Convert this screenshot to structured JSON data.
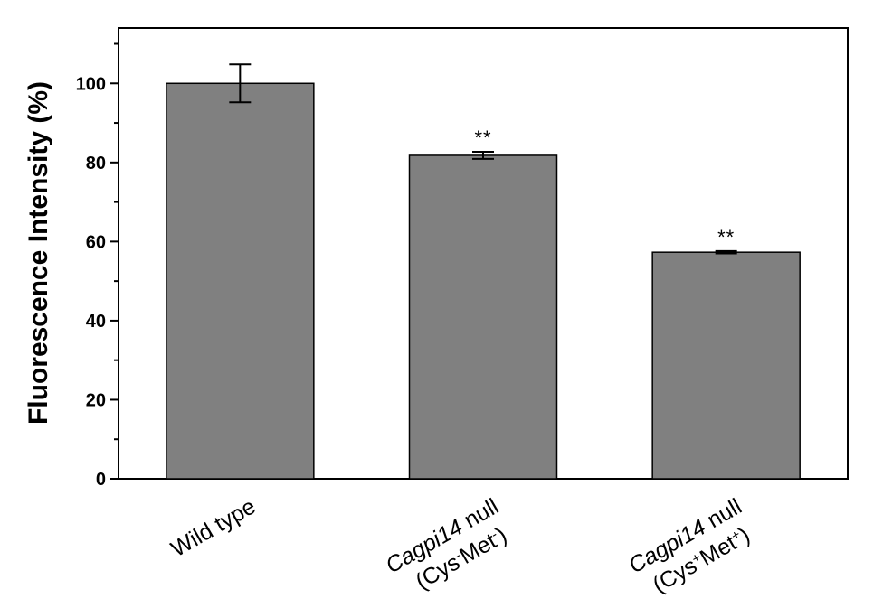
{
  "chart_data": {
    "type": "bar",
    "ylabel": "Fluorescence Intensity (%)",
    "ylim": [
      0,
      114
    ],
    "yticks": [
      0,
      20,
      40,
      60,
      80,
      100
    ],
    "minor_tick_step": 10,
    "grid": false,
    "legend": "none",
    "bar_color": "#808080",
    "categories": [
      {
        "main": "Wild type",
        "italic": "",
        "rest": "",
        "genotype": "",
        "cys_sign": "",
        "met_sign": ""
      },
      {
        "main": "",
        "italic": "Cagpi14",
        "rest": " null",
        "genotype": "(Cys",
        "cys_sign": "-",
        "met_text": "Met",
        "met_sign": "-",
        "close": ")"
      },
      {
        "main": "",
        "italic": "Cagpi14",
        "rest": " null",
        "genotype": "(Cys",
        "cys_sign": "+",
        "met_text": "Met",
        "met_sign": "+",
        "close": ")"
      }
    ],
    "values": [
      100,
      81.8,
      57.3
    ],
    "errors": [
      4.8,
      0.9,
      0.3
    ],
    "significance": [
      "",
      "**",
      "**"
    ]
  }
}
